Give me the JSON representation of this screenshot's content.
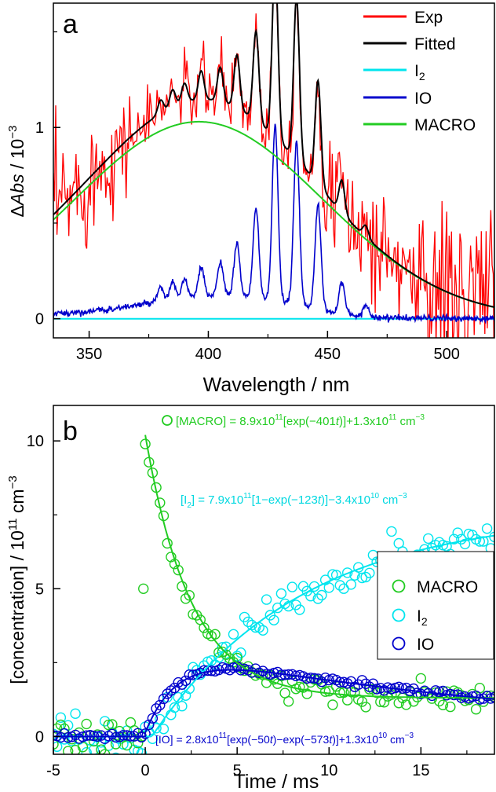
{
  "chart_data": [
    {
      "panel": "a",
      "type": "line",
      "xlabel": "Wavelength / nm",
      "ylabel": "ΔAbs / 10⁻³",
      "xlim": [
        335,
        520
      ],
      "ylim": [
        -0.1,
        1.65
      ],
      "x_ticks": [
        350,
        400,
        450,
        500
      ],
      "y_ticks": [
        0,
        1
      ],
      "legend_position": "top-right",
      "legend": [
        "Exp",
        "Fitted",
        "I₂",
        "IO",
        "MACRO"
      ],
      "series": [
        {
          "name": "Exp",
          "color": "#ff0000"
        },
        {
          "name": "Fitted",
          "color": "#000000"
        },
        {
          "name": "I₂",
          "color": "#00e5ee"
        },
        {
          "name": "IO",
          "color": "#0000cc"
        },
        {
          "name": "MACRO",
          "color": "#22cc22"
        }
      ],
      "components": {
        "MACRO_gaussian": {
          "peak_nm": 396,
          "peak_value": 1.03,
          "sigma_nm": 52
        },
        "IO_peaks_nm": [
          380,
          385,
          390,
          397,
          405,
          412,
          420,
          428,
          437,
          446,
          456,
          466
        ],
        "IO_peak_values": [
          0.07,
          0.09,
          0.1,
          0.15,
          0.18,
          0.28,
          0.47,
          0.92,
          0.85,
          0.54,
          0.17,
          0.06
        ],
        "I2_level": 0.0
      }
    },
    {
      "panel": "b",
      "type": "scatter",
      "xlabel": "Time / ms",
      "ylabel": "[concentration] / 10¹¹ cm⁻³",
      "xlim": [
        -5,
        19
      ],
      "ylim": [
        -0.6,
        11.2
      ],
      "x_ticks": [
        -5,
        0,
        5,
        10,
        15
      ],
      "y_ticks": [
        0,
        5,
        10
      ],
      "legend_position": "right",
      "legend": [
        "MACRO",
        "I₂",
        "IO"
      ],
      "series": [
        {
          "name": "MACRO",
          "color": "#22cc22",
          "model": {
            "A": 8.9,
            "k": 0.401,
            "c": 1.3
          }
        },
        {
          "name": "I₂",
          "color": "#00e5ee",
          "model": {
            "A": 7.9,
            "k": 0.123,
            "c": -0.34
          }
        },
        {
          "name": "IO",
          "color": "#0000cc",
          "model": {
            "A": 2.8,
            "k1": 0.05,
            "k2": 0.573,
            "c": 0.13
          }
        }
      ],
      "outlier_points": [
        {
          "x": -0.1,
          "y": 5.0,
          "series": "MACRO"
        }
      ],
      "annotations": {
        "macro": {
          "pre": "[MACRO] = 8.9x10",
          "sup1": "11",
          "mid": "[exp(−401",
          "t": "t",
          "post": ")]+1.3x10",
          "sup2": "11",
          "unit": " cm",
          "sup3": "−3"
        },
        "i2": {
          "pre": "[I",
          "sub": "2",
          "mid1": "] = 7.9x10",
          "sup1": "11",
          "mid2": "[1−exp(−123",
          "t": "t",
          "post": ")]−3.4x10",
          "sup2": "10",
          "unit": " cm",
          "sup3": "−3"
        },
        "io": {
          "pre": "[IO] = 2.8x10",
          "sup1": "11",
          "mid": "[exp(−50",
          "t1": "t",
          "mid2": ")−exp(−573",
          "t2": "t",
          "post": ")]+1.3x10",
          "sup2": "10",
          "unit": " cm",
          "sup3": "−3"
        }
      }
    }
  ],
  "labels": {
    "panel_a": "a",
    "panel_b": "b",
    "a_xtitle": "Wavelength / nm",
    "a_ytitle_delta": "Δ",
    "a_ytitle_abs": "Abs",
    "a_ytitle_rest": " / 10",
    "a_ytitle_exp": "−3",
    "b_xtitle": "Time / ms",
    "b_ytitle_main": "[concentration] / 10",
    "b_ytitle_exp1": "11",
    "b_ytitle_unit": " cm",
    "b_ytitle_exp2": "−3",
    "a_legend": {
      "exp": "Exp",
      "fitted": "Fitted",
      "i2_base": "I",
      "i2_sub": "2",
      "io": "IO",
      "macro": "MACRO"
    },
    "b_legend": {
      "macro": "MACRO",
      "i2_base": "I",
      "i2_sub": "2",
      "io": "IO"
    }
  }
}
